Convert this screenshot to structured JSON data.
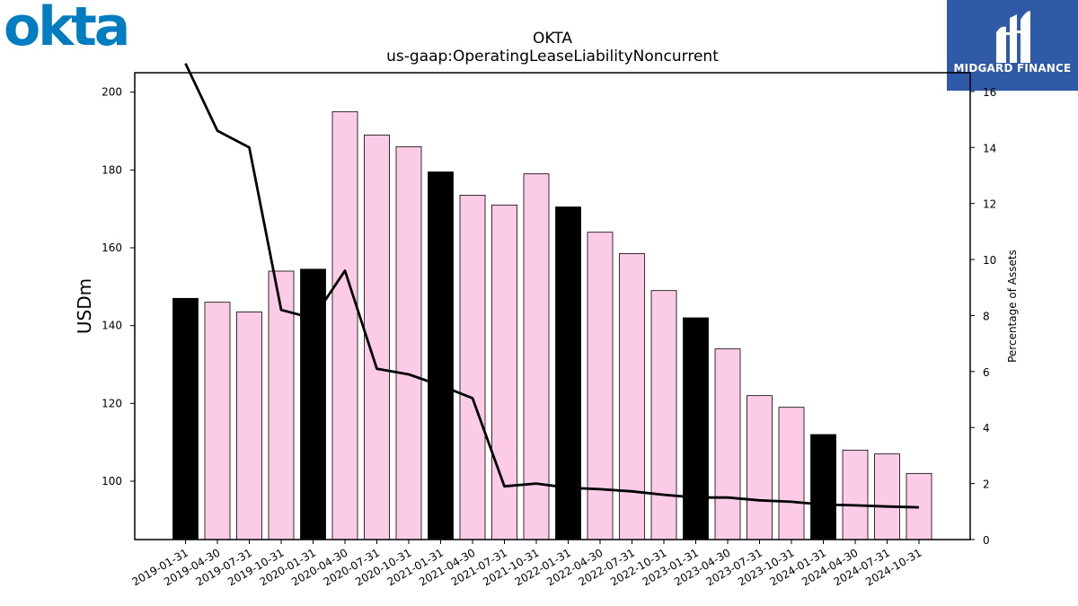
{
  "branding": {
    "okta_logo_text": "okta",
    "okta_color": "#007dc1",
    "badge_name": "MIDGARD FINANCE",
    "badge_color": "#2e5aa8"
  },
  "chart_data": {
    "type": "bar",
    "title": "OKTA",
    "subtitle": "us-gaap:OperatingLeaseLiabilityNoncurrent",
    "ylabel": "USDm",
    "y2label": "Percentage of Assets",
    "ylim": [
      85,
      205
    ],
    "y2lim": [
      0,
      16.67
    ],
    "yticks": [
      100,
      120,
      140,
      160,
      180,
      200
    ],
    "y2ticks": [
      0,
      2,
      4,
      6,
      8,
      10,
      12,
      14,
      16
    ],
    "categories": [
      "2019-01-31",
      "2019-04-30",
      "2019-07-31",
      "2019-10-31",
      "2020-01-31",
      "2020-04-30",
      "2020-07-31",
      "2020-10-31",
      "2021-01-31",
      "2021-04-30",
      "2021-07-31",
      "2021-10-31",
      "2022-01-31",
      "2022-04-30",
      "2022-07-31",
      "2022-10-31",
      "2023-01-31",
      "2023-04-30",
      "2023-07-31",
      "2023-10-31",
      "2024-01-31",
      "2024-04-30",
      "2024-07-31",
      "2024-10-31"
    ],
    "series": [
      {
        "kind": "bar",
        "axis": "left",
        "values": [
          147.0,
          146.0,
          143.5,
          154.0,
          154.5,
          195.0,
          189.0,
          186.0,
          179.5,
          173.5,
          171.0,
          179.0,
          170.5,
          164.0,
          158.5,
          149.0,
          142.0,
          134.0,
          122.0,
          119.0,
          112.0,
          108.0,
          107.0,
          102.0
        ],
        "highlight": [
          true,
          false,
          false,
          false,
          true,
          false,
          false,
          false,
          true,
          false,
          false,
          false,
          true,
          false,
          false,
          false,
          true,
          false,
          false,
          false,
          true,
          false,
          false,
          false
        ],
        "color": "#fccbe5",
        "highlight_color": "#000000"
      },
      {
        "kind": "line",
        "axis": "right",
        "values": [
          17.0,
          14.6,
          14.0,
          8.2,
          7.9,
          9.6,
          6.1,
          5.9,
          5.5,
          5.05,
          1.9,
          2.0,
          1.85,
          1.8,
          1.72,
          1.6,
          1.5,
          1.5,
          1.4,
          1.35,
          1.25,
          1.22,
          1.18,
          1.15
        ],
        "color": "#000000"
      }
    ],
    "grid": false,
    "legend": "none"
  }
}
